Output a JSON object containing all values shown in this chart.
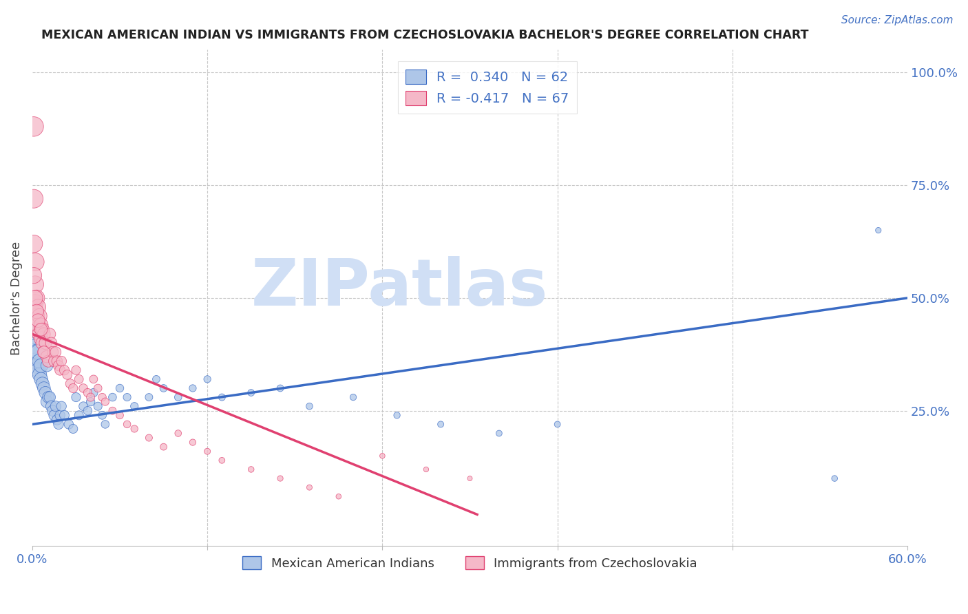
{
  "title": "MEXICAN AMERICAN INDIAN VS IMMIGRANTS FROM CZECHOSLOVAKIA BACHELOR'S DEGREE CORRELATION CHART",
  "source": "Source: ZipAtlas.com",
  "ylabel": "Bachelor's Degree",
  "right_ytick_labels": [
    "25.0%",
    "50.0%",
    "75.0%",
    "100.0%"
  ],
  "right_ytick_values": [
    0.25,
    0.5,
    0.75,
    1.0
  ],
  "xmin": 0.0,
  "xmax": 0.6,
  "ymin": -0.05,
  "ymax": 1.05,
  "blue_R": 0.34,
  "blue_N": 62,
  "pink_R": -0.417,
  "pink_N": 67,
  "blue_color": "#aec6e8",
  "pink_color": "#f5b8c8",
  "blue_line_color": "#3a6bc4",
  "pink_line_color": "#e04070",
  "blue_line_x": [
    0.0,
    0.6
  ],
  "blue_line_y": [
    0.22,
    0.5
  ],
  "pink_line_x": [
    0.0,
    0.305
  ],
  "pink_line_y": [
    0.42,
    0.02
  ],
  "watermark": "ZIPatlas",
  "watermark_color": "#d0dff5",
  "background_color": "#ffffff",
  "grid_color": "#c8c8c8",
  "blue_scatter_x": [
    0.001,
    0.001,
    0.001,
    0.002,
    0.002,
    0.002,
    0.003,
    0.003,
    0.004,
    0.004,
    0.005,
    0.005,
    0.006,
    0.006,
    0.007,
    0.008,
    0.009,
    0.01,
    0.01,
    0.011,
    0.012,
    0.013,
    0.014,
    0.015,
    0.016,
    0.017,
    0.018,
    0.019,
    0.02,
    0.022,
    0.025,
    0.028,
    0.03,
    0.032,
    0.035,
    0.038,
    0.04,
    0.042,
    0.045,
    0.048,
    0.05,
    0.055,
    0.06,
    0.065,
    0.07,
    0.08,
    0.085,
    0.09,
    0.1,
    0.11,
    0.12,
    0.13,
    0.15,
    0.17,
    0.19,
    0.22,
    0.25,
    0.28,
    0.32,
    0.36,
    0.55,
    0.58
  ],
  "blue_scatter_y": [
    0.44,
    0.41,
    0.38,
    0.43,
    0.39,
    0.36,
    0.38,
    0.35,
    0.38,
    0.34,
    0.36,
    0.33,
    0.35,
    0.32,
    0.31,
    0.3,
    0.29,
    0.35,
    0.27,
    0.28,
    0.28,
    0.26,
    0.25,
    0.24,
    0.26,
    0.23,
    0.22,
    0.24,
    0.26,
    0.24,
    0.22,
    0.21,
    0.28,
    0.24,
    0.26,
    0.25,
    0.27,
    0.29,
    0.26,
    0.24,
    0.22,
    0.28,
    0.3,
    0.28,
    0.26,
    0.28,
    0.32,
    0.3,
    0.28,
    0.3,
    0.32,
    0.28,
    0.29,
    0.3,
    0.26,
    0.28,
    0.24,
    0.22,
    0.2,
    0.22,
    0.1,
    0.65
  ],
  "blue_scatter_s": [
    400,
    350,
    320,
    330,
    300,
    280,
    270,
    260,
    250,
    240,
    230,
    220,
    210,
    200,
    190,
    180,
    170,
    160,
    160,
    150,
    140,
    135,
    130,
    125,
    120,
    115,
    110,
    108,
    105,
    100,
    95,
    90,
    90,
    88,
    85,
    82,
    80,
    78,
    75,
    73,
    70,
    70,
    68,
    65,
    65,
    62,
    60,
    60,
    58,
    55,
    55,
    52,
    50,
    50,
    48,
    45,
    45,
    42,
    40,
    40,
    38,
    35
  ],
  "pink_scatter_x": [
    0.001,
    0.001,
    0.001,
    0.002,
    0.002,
    0.002,
    0.003,
    0.003,
    0.003,
    0.004,
    0.004,
    0.005,
    0.005,
    0.006,
    0.006,
    0.007,
    0.007,
    0.008,
    0.008,
    0.009,
    0.01,
    0.011,
    0.012,
    0.013,
    0.014,
    0.015,
    0.016,
    0.017,
    0.018,
    0.019,
    0.02,
    0.022,
    0.024,
    0.026,
    0.028,
    0.03,
    0.032,
    0.035,
    0.038,
    0.04,
    0.042,
    0.045,
    0.048,
    0.05,
    0.055,
    0.06,
    0.065,
    0.07,
    0.08,
    0.09,
    0.1,
    0.11,
    0.12,
    0.13,
    0.15,
    0.17,
    0.19,
    0.21,
    0.24,
    0.27,
    0.3,
    0.001,
    0.002,
    0.003,
    0.004,
    0.006,
    0.008
  ],
  "pink_scatter_y": [
    0.88,
    0.72,
    0.62,
    0.58,
    0.53,
    0.49,
    0.5,
    0.46,
    0.43,
    0.48,
    0.44,
    0.46,
    0.42,
    0.44,
    0.41,
    0.43,
    0.4,
    0.42,
    0.38,
    0.4,
    0.37,
    0.36,
    0.42,
    0.4,
    0.38,
    0.36,
    0.38,
    0.36,
    0.35,
    0.34,
    0.36,
    0.34,
    0.33,
    0.31,
    0.3,
    0.34,
    0.32,
    0.3,
    0.29,
    0.28,
    0.32,
    0.3,
    0.28,
    0.27,
    0.25,
    0.24,
    0.22,
    0.21,
    0.19,
    0.17,
    0.2,
    0.18,
    0.16,
    0.14,
    0.12,
    0.1,
    0.08,
    0.06,
    0.15,
    0.12,
    0.1,
    0.55,
    0.5,
    0.47,
    0.45,
    0.43,
    0.38
  ],
  "pink_scatter_s": [
    420,
    380,
    340,
    350,
    320,
    290,
    280,
    270,
    260,
    260,
    250,
    240,
    230,
    220,
    210,
    200,
    190,
    180,
    175,
    170,
    160,
    155,
    150,
    145,
    140,
    135,
    130,
    125,
    120,
    115,
    110,
    105,
    100,
    95,
    90,
    90,
    85,
    82,
    78,
    75,
    72,
    70,
    68,
    65,
    62,
    60,
    58,
    55,
    52,
    50,
    48,
    45,
    42,
    40,
    38,
    35,
    33,
    30,
    30,
    28,
    25,
    280,
    250,
    220,
    200,
    180,
    160
  ]
}
